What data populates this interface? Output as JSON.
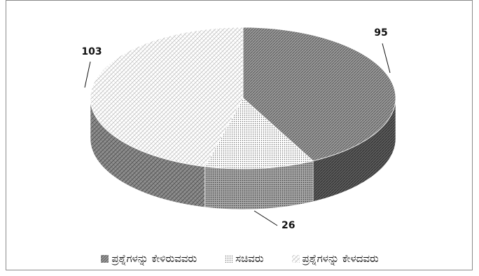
{
  "chart_data": {
    "type": "pie",
    "style": "3d",
    "categories": [
      "ಪ್ರಶ್ನೆಗಳನ್ನು ಕೇಳಿರುವವರು",
      "ಸಚಿವರು",
      "ಪ್ರಶ್ನೆಗಳನ್ನು ಕೇಳದವರು"
    ],
    "values": [
      95,
      26,
      103
    ],
    "data_labels": [
      "95",
      "26",
      "103"
    ],
    "legend_position": "bottom",
    "colors": [
      "#8c8c8c",
      "#e8e8e8",
      "#f4f4f4"
    ]
  }
}
